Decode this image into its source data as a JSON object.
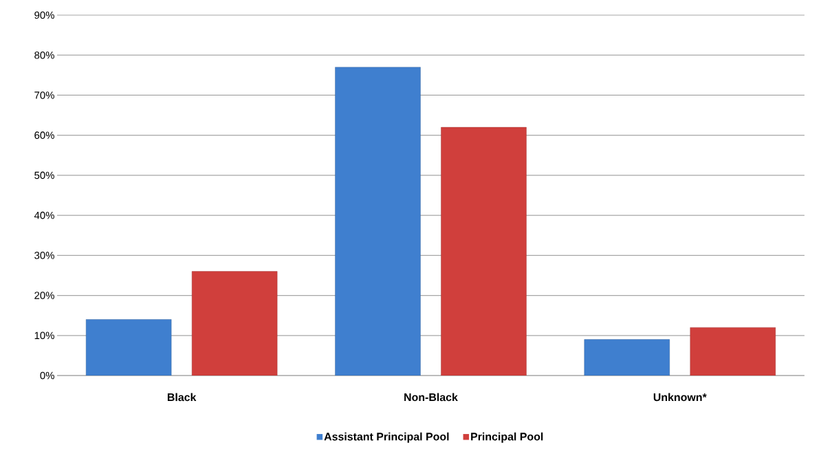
{
  "chart_data": {
    "type": "bar",
    "categories": [
      "Black",
      "Non-Black",
      "Unknown*"
    ],
    "series": [
      {
        "name": "Assistant Principal Pool",
        "color": "#3f7fcf",
        "values": [
          14,
          77,
          9
        ]
      },
      {
        "name": "Principal Pool",
        "color": "#d03f3c",
        "values": [
          26,
          62,
          12
        ]
      }
    ],
    "ylim": [
      0,
      90
    ],
    "yticks": [
      {
        "value": 0,
        "label": "0%"
      },
      {
        "value": 10,
        "label": "10%"
      },
      {
        "value": 20,
        "label": "20%"
      },
      {
        "value": 30,
        "label": "30%"
      },
      {
        "value": 40,
        "label": "40%"
      },
      {
        "value": 50,
        "label": "50%"
      },
      {
        "value": 60,
        "label": "60%"
      },
      {
        "value": 70,
        "label": "70%"
      },
      {
        "value": 80,
        "label": "80%"
      },
      {
        "value": 90,
        "label": "90%"
      }
    ],
    "grid": "y",
    "legend": "bottom"
  }
}
